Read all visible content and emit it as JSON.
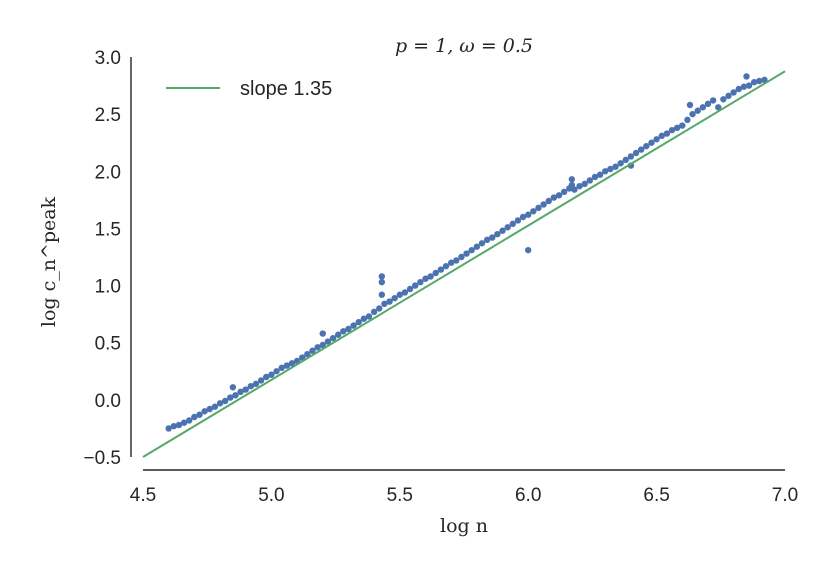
{
  "chart_data": {
    "type": "scatter",
    "title": "p = 1, ω = 0.5",
    "xlabel": "log n",
    "ylabel": "log c_n^peak",
    "xlim": [
      4.5,
      7.0
    ],
    "ylim": [
      -0.5,
      3.0
    ],
    "xticks": [
      "4.5",
      "5.0",
      "5.5",
      "6.0",
      "6.5",
      "7.0"
    ],
    "yticks": [
      "−0.5",
      "0.0",
      "0.5",
      "1.0",
      "1.5",
      "2.0",
      "2.5",
      "3.0"
    ],
    "grid": false,
    "legend": {
      "position": "top-left",
      "entries": [
        "slope 1.35"
      ]
    },
    "colors": {
      "points": "#4c72b0",
      "fit": "#55a868",
      "axes": "#262626"
    },
    "fit_line": {
      "label": "slope 1.35",
      "slope": 1.35,
      "x": [
        4.5,
        7.0
      ],
      "y": [
        -0.5,
        2.875
      ]
    },
    "series": [
      {
        "x": [
          4.6,
          4.62,
          4.64,
          4.66,
          4.68,
          4.7,
          4.72,
          4.74,
          4.76,
          4.78,
          4.8,
          4.82,
          4.84,
          4.85,
          4.86,
          4.88,
          4.9,
          4.92,
          4.94,
          4.96,
          4.98,
          5.0,
          5.02,
          5.04,
          5.06,
          5.08,
          5.1,
          5.12,
          5.14,
          5.16,
          5.18,
          5.2,
          5.2,
          5.22,
          5.24,
          5.26,
          5.28,
          5.3,
          5.32,
          5.34,
          5.36,
          5.38,
          5.4,
          5.42,
          5.43,
          5.43,
          5.43,
          5.44,
          5.46,
          5.48,
          5.5,
          5.52,
          5.54,
          5.56,
          5.58,
          5.6,
          5.62,
          5.64,
          5.66,
          5.68,
          5.7,
          5.72,
          5.74,
          5.76,
          5.78,
          5.8,
          5.82,
          5.84,
          5.86,
          5.88,
          5.9,
          5.92,
          5.94,
          5.96,
          5.98,
          6.0,
          6.0,
          6.02,
          6.04,
          6.06,
          6.08,
          6.1,
          6.12,
          6.14,
          6.16,
          6.17,
          6.17,
          6.18,
          6.2,
          6.22,
          6.24,
          6.26,
          6.28,
          6.3,
          6.32,
          6.34,
          6.36,
          6.38,
          6.4,
          6.4,
          6.42,
          6.44,
          6.46,
          6.48,
          6.5,
          6.52,
          6.54,
          6.56,
          6.58,
          6.6,
          6.62,
          6.63,
          6.64,
          6.66,
          6.68,
          6.7,
          6.72,
          6.74,
          6.76,
          6.78,
          6.8,
          6.82,
          6.84,
          6.85,
          6.86,
          6.88,
          6.9,
          6.92
        ],
        "y": [
          -0.25,
          -0.23,
          -0.22,
          -0.2,
          -0.18,
          -0.15,
          -0.13,
          -0.1,
          -0.08,
          -0.06,
          -0.03,
          -0.01,
          0.02,
          0.11,
          0.04,
          0.07,
          0.09,
          0.12,
          0.14,
          0.17,
          0.2,
          0.22,
          0.25,
          0.28,
          0.3,
          0.32,
          0.34,
          0.37,
          0.4,
          0.43,
          0.46,
          0.48,
          0.58,
          0.51,
          0.54,
          0.57,
          0.6,
          0.62,
          0.65,
          0.68,
          0.71,
          0.73,
          0.77,
          0.8,
          0.92,
          1.03,
          1.08,
          0.84,
          0.86,
          0.89,
          0.92,
          0.94,
          0.97,
          1.0,
          1.03,
          1.06,
          1.08,
          1.11,
          1.14,
          1.17,
          1.2,
          1.22,
          1.25,
          1.28,
          1.31,
          1.34,
          1.37,
          1.4,
          1.42,
          1.45,
          1.48,
          1.51,
          1.54,
          1.57,
          1.6,
          1.62,
          1.31,
          1.65,
          1.68,
          1.71,
          1.74,
          1.77,
          1.79,
          1.82,
          1.85,
          1.88,
          1.93,
          1.84,
          1.87,
          1.89,
          1.92,
          1.95,
          1.97,
          2.0,
          2.02,
          2.04,
          2.07,
          2.1,
          2.13,
          2.05,
          2.16,
          2.19,
          2.22,
          2.25,
          2.28,
          2.31,
          2.33,
          2.36,
          2.38,
          2.4,
          2.45,
          2.58,
          2.5,
          2.53,
          2.56,
          2.59,
          2.62,
          2.56,
          2.63,
          2.66,
          2.69,
          2.72,
          2.74,
          2.83,
          2.75,
          2.78,
          2.79,
          2.8
        ]
      }
    ]
  }
}
